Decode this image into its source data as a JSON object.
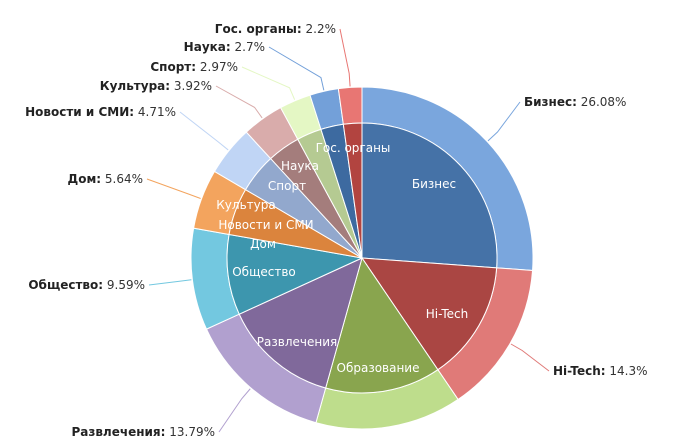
{
  "chart_data": {
    "type": "pie",
    "variant": "nested-donut (inner pie + outer ring, same categories)",
    "title": "",
    "legend": "none",
    "categories": [
      "Бизнес",
      "Hi-Tech",
      "Образование",
      "Развлечения",
      "Общество",
      "Дом",
      "Новости и СМИ",
      "Культура",
      "Спорт",
      "Наука",
      "Гос. органы"
    ],
    "values": [
      26.08,
      14.3,
      13.79,
      13.79,
      9.59,
      5.64,
      4.71,
      3.92,
      2.97,
      2.7,
      2.2
    ],
    "value_labels": [
      "26.08%",
      "14.3%",
      "",
      "13.79%",
      "9.59%",
      "5.64%",
      "4.71%",
      "3.92%",
      "2.97%",
      "2.7%",
      "2.2%"
    ],
    "inner_colors": [
      "#4572a7",
      "#aa4643",
      "#89a54e",
      "#80699b",
      "#3d96ae",
      "#db843d",
      "#92a8cd",
      "#a47d7c",
      "#b5ca92",
      "#3d6aa0",
      "#b24440"
    ],
    "outer_colors": [
      "#7aa6dd",
      "#e07a78",
      "#bedd8c",
      "#b1a0cf",
      "#73c8e0",
      "#f3a45e",
      "#c0d5f5",
      "#d9acab",
      "#e4f7c4",
      "#73a0d9",
      "#e87673"
    ]
  }
}
